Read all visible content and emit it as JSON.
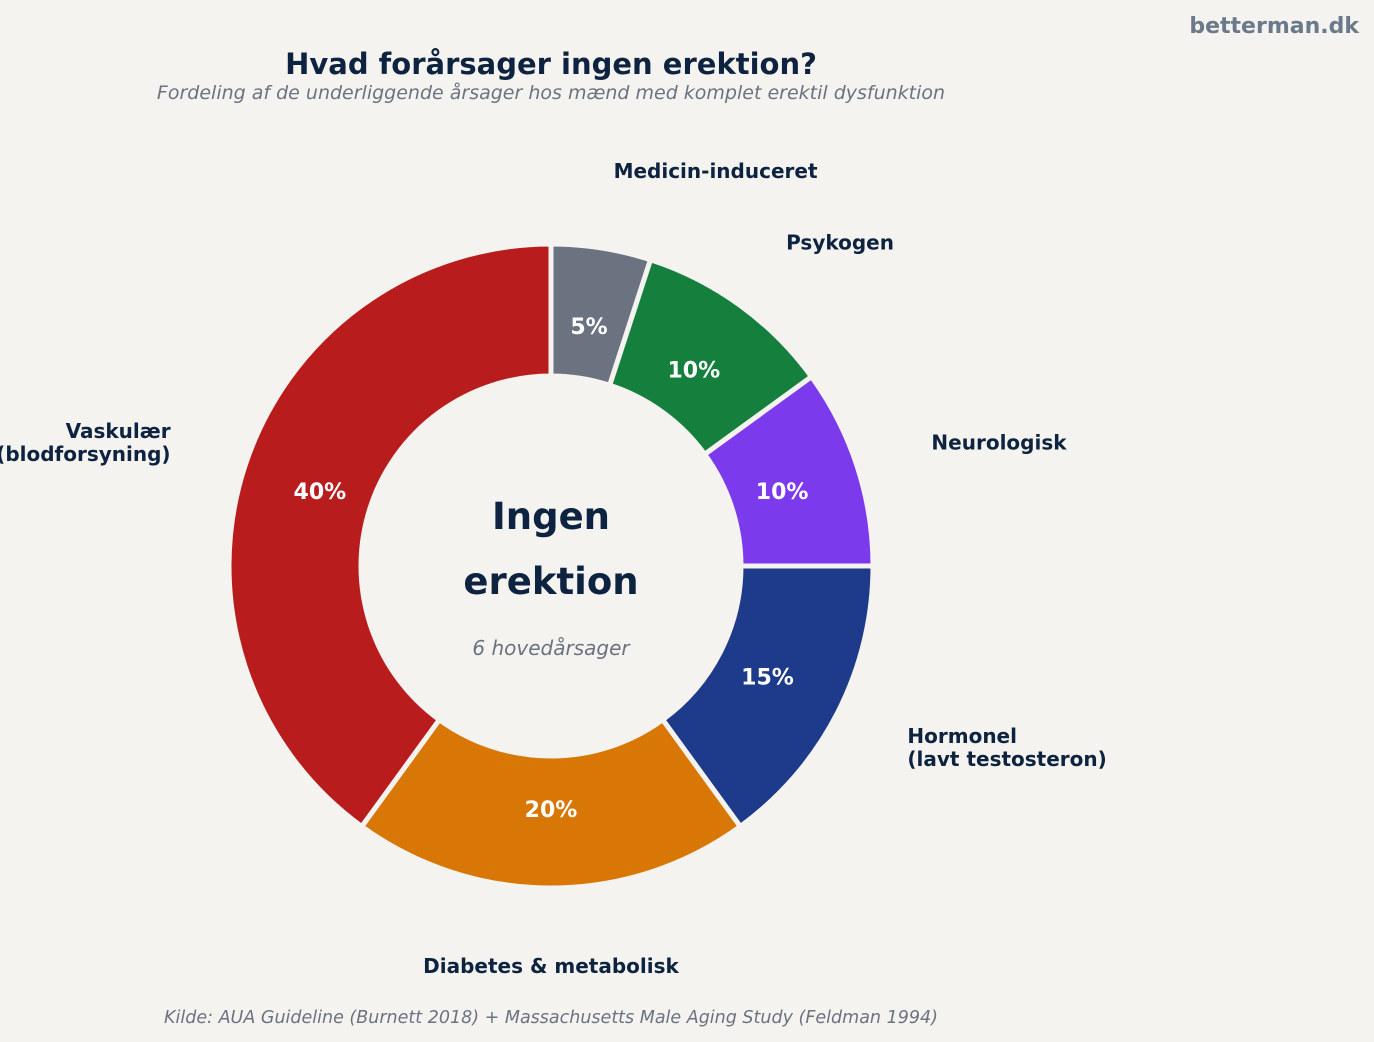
{
  "brand": "betterman.dk",
  "title": "Hvad forårsager ingen erektion?",
  "subtitle": "Fordeling af de underliggende årsager hos mænd med komplet erektil dysfunktion",
  "center": {
    "line1": "Ingen",
    "line2": "erektion",
    "sub": "6 hovedårsager"
  },
  "source": "Kilde: AUA Guideline (Burnett 2018) + Massachusetts Male Aging Study (Feldman 1994)",
  "chart_data": {
    "type": "pie",
    "donut": true,
    "start_angle": "12 o'clock",
    "direction": "clockwise",
    "slices": [
      {
        "label": [
          "Medicin-induceret"
        ],
        "value": 5,
        "pct_label": "5%",
        "color": "#6b7280"
      },
      {
        "label": [
          "Psykogen"
        ],
        "value": 10,
        "pct_label": "10%",
        "color": "#15803d"
      },
      {
        "label": [
          "Neurologisk"
        ],
        "value": 10,
        "pct_label": "10%",
        "color": "#7c3aed"
      },
      {
        "label": [
          "Hormonel",
          "(lavt testosteron)"
        ],
        "value": 15,
        "pct_label": "15%",
        "color": "#1e3a8a"
      },
      {
        "label": [
          "Diabetes & metabolisk"
        ],
        "value": 20,
        "pct_label": "20%",
        "color": "#d97706"
      },
      {
        "label": [
          "Vaskulær",
          "(blodforsyning)"
        ],
        "value": 40,
        "pct_label": "40%",
        "color": "#b91c1c"
      }
    ]
  }
}
